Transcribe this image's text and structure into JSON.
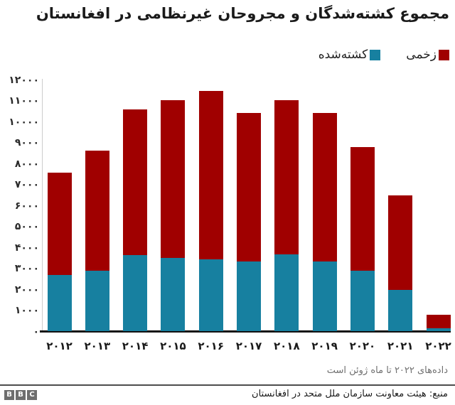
{
  "title": "مجموع کشته‌شدگان و مجروحان غیرنظامی در افغانستان",
  "footnote": "داده‌های ۲۰۲۲ تا ماه ژوئن است",
  "source": "منبع: هیئت معاونت سازمان ملل متحد در افغانستان",
  "bbc_logo": [
    "B",
    "B",
    "C"
  ],
  "colors": {
    "injured": "#a00000",
    "killed": "#1780a0",
    "axis_line": "#cccccc",
    "baseline": "#111111",
    "divider": "#4d4d4d",
    "bbc_gray": "#6e6e6e"
  },
  "chart_data": {
    "type": "bar",
    "stacked": true,
    "title": "مجموع کشته‌شدگان و مجروحان غیرنظامی در افغانستان",
    "categories": [
      "۲۰۱۲",
      "۲۰۱۳",
      "۲۰۱۴",
      "۲۰۱۵",
      "۲۰۱۶",
      "۲۰۱۷",
      "۲۰۱۸",
      "۲۰۱۹",
      "۲۰۲۰",
      "۲۰۲۱",
      "۲۰۲۲"
    ],
    "categories_latin": [
      2012,
      2013,
      2014,
      2015,
      2016,
      2017,
      2018,
      2019,
      2020,
      2021,
      2022
    ],
    "series": [
      {
        "name": "کشته‌شده",
        "color": "#1780a0",
        "values": [
          2700,
          2900,
          3650,
          3500,
          3450,
          3350,
          3700,
          3350,
          2900,
          2000,
          150
        ]
      },
      {
        "name": "زخمی",
        "color": "#a00000",
        "values": [
          4900,
          5750,
          6950,
          7550,
          8050,
          7100,
          7350,
          7100,
          5900,
          4500,
          650
        ]
      }
    ],
    "totals": [
      7600,
      8650,
      10600,
      11050,
      11500,
      10450,
      11050,
      10450,
      8800,
      6500,
      800
    ],
    "ylim": [
      0,
      12000
    ],
    "ytick_step": 1000,
    "ytick_labels": [
      "۰",
      "۱۰۰۰",
      "۲۰۰۰",
      "۳۰۰۰",
      "۴۰۰۰",
      "۵۰۰۰",
      "۶۰۰۰",
      "۷۰۰۰",
      "۸۰۰۰",
      "۹۰۰۰",
      "۱۰۰۰۰",
      "۱۱۰۰۰",
      "۱۲۰۰۰"
    ],
    "grid": false,
    "legend_position": "top-right"
  }
}
